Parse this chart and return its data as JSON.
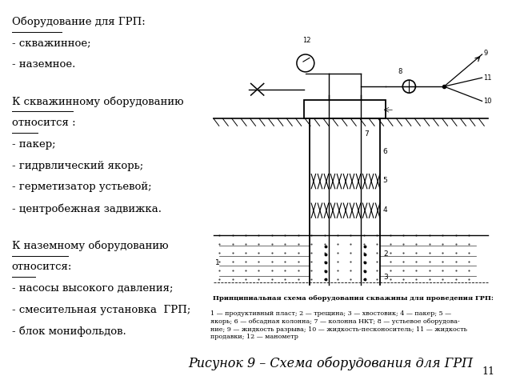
{
  "left_items": [
    {
      "text": "Оборудование для ГРП:",
      "underline": true,
      "gap_after": false
    },
    {
      "text": "- скважинное;",
      "underline": false,
      "gap_after": false
    },
    {
      "text": "- наземное.",
      "underline": false,
      "gap_after": true
    },
    {
      "text": "К скважинному оборудованию",
      "underline": true,
      "gap_after": false
    },
    {
      "text": "относится :",
      "underline": true,
      "gap_after": false
    },
    {
      "text": "- пакер;",
      "underline": false,
      "gap_after": false
    },
    {
      "text": "- гидрвлический якорь;",
      "underline": false,
      "gap_after": false
    },
    {
      "text": "- герметизатор устьевой;",
      "underline": false,
      "gap_after": false
    },
    {
      "text": "- центробежная задвижка.",
      "underline": false,
      "gap_after": true
    },
    {
      "text": "К наземному оборудованию",
      "underline": true,
      "gap_after": false
    },
    {
      "text": "относится:",
      "underline": true,
      "gap_after": false
    },
    {
      "text": "- насосы высокого давления;",
      "underline": false,
      "gap_after": false
    },
    {
      "text": "- смесительная установка  ГРП;",
      "underline": false,
      "gap_after": false
    },
    {
      "text": "- блок монифольдов.",
      "underline": false,
      "gap_after": false
    }
  ],
  "figure_label": "Рисунок 9 – Схема оборудования для ГРП",
  "caption_title": "Принципиальная схема оборудования скважины для проведения ГРП:",
  "caption_body": "1 — продуктивный пласт; 2 — трещина; 3 — хвостовик; 4 — пакер; 5 —\nякорь; 6 — обсадная колонна; 7 — колонна НКТ; 8 — устьевое оборудова-\nние; 9 — жидкость разрыва; 10 — жидкость-песконоситель; 11 — жидкость\nпродавки; 12 — манометр",
  "page_number": "11",
  "bg_color": "#ffffff",
  "text_color": "#000000",
  "fs_main": 9.5,
  "fs_caption": 6.0,
  "fs_label": 11.5
}
